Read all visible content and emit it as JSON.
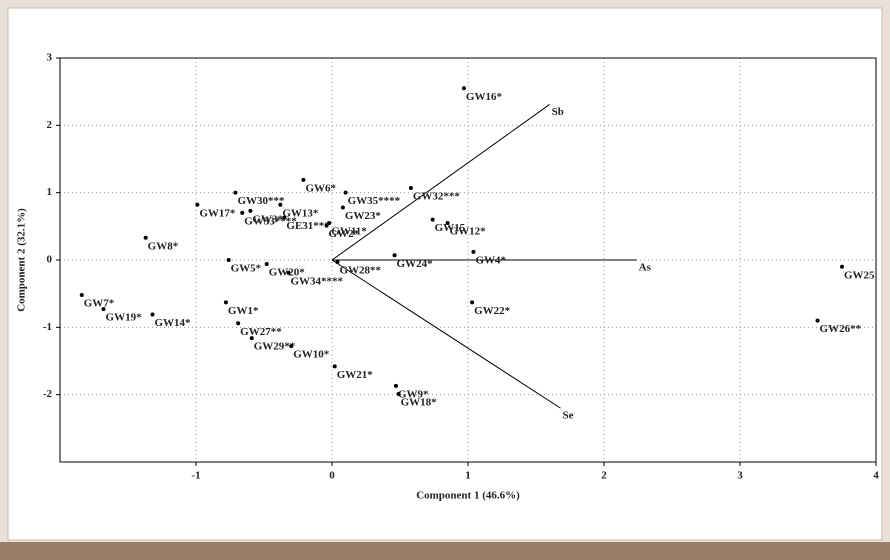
{
  "chart_data": {
    "type": "scatter",
    "xlabel": "Component 1 (46.6%)",
    "ylabel": "Component 2 (32.1%)",
    "xlim": [
      -2,
      4
    ],
    "ylim": [
      -3,
      3
    ],
    "xticks": [
      -1,
      0,
      1,
      2,
      3,
      4
    ],
    "yticks": [
      -2,
      -1,
      0,
      1,
      2,
      3
    ],
    "grid": true,
    "color": "#000000",
    "labels": [
      "GW16*",
      "GW6*",
      "GW35****",
      "GW32***",
      "GW30***",
      "GW17*",
      "GW13*",
      "GW3*",
      "GW33****",
      "GE31***",
      "GW23*",
      "GW11*",
      "GW2*",
      "GW15",
      "GW12*",
      "GW8*",
      "GW4*",
      "GW24*",
      "GW5*",
      "GW20*",
      "GW28**",
      "GW34****",
      "GW25",
      "GW7*",
      "GW19*",
      "GW14*",
      "GW1*",
      "GW22*",
      "GW26**",
      "GW27**",
      "GW29**",
      "GW10*",
      "GW21*",
      "GW9*",
      "GW18*"
    ],
    "x": [
      0.97,
      -0.21,
      0.1,
      0.58,
      -0.71,
      -0.99,
      -0.38,
      -0.6,
      -0.66,
      -0.35,
      0.08,
      -0.02,
      -0.04,
      0.74,
      0.85,
      -1.37,
      1.04,
      0.46,
      -0.76,
      -0.48,
      0.04,
      -0.32,
      3.75,
      -1.84,
      -1.68,
      -1.32,
      -0.78,
      1.03,
      3.57,
      -0.69,
      -0.59,
      -0.3,
      0.02,
      0.47,
      0.49
    ],
    "y": [
      2.55,
      1.19,
      1.0,
      1.07,
      1.0,
      0.82,
      0.82,
      0.73,
      0.7,
      0.63,
      0.78,
      0.55,
      0.51,
      0.6,
      0.55,
      0.33,
      0.12,
      0.07,
      0.0,
      -0.06,
      -0.03,
      -0.19,
      -0.1,
      -0.52,
      -0.73,
      -0.81,
      -0.63,
      -0.63,
      -0.9,
      -0.94,
      -1.16,
      -1.28,
      -1.58,
      -1.87,
      -1.99
    ],
    "loadings": [
      {
        "label": "Sb",
        "x": 1.6,
        "y": 2.31
      },
      {
        "label": "As",
        "x": 2.24,
        "y": 0
      },
      {
        "label": "Se",
        "x": 1.68,
        "y": -2.2
      }
    ]
  }
}
